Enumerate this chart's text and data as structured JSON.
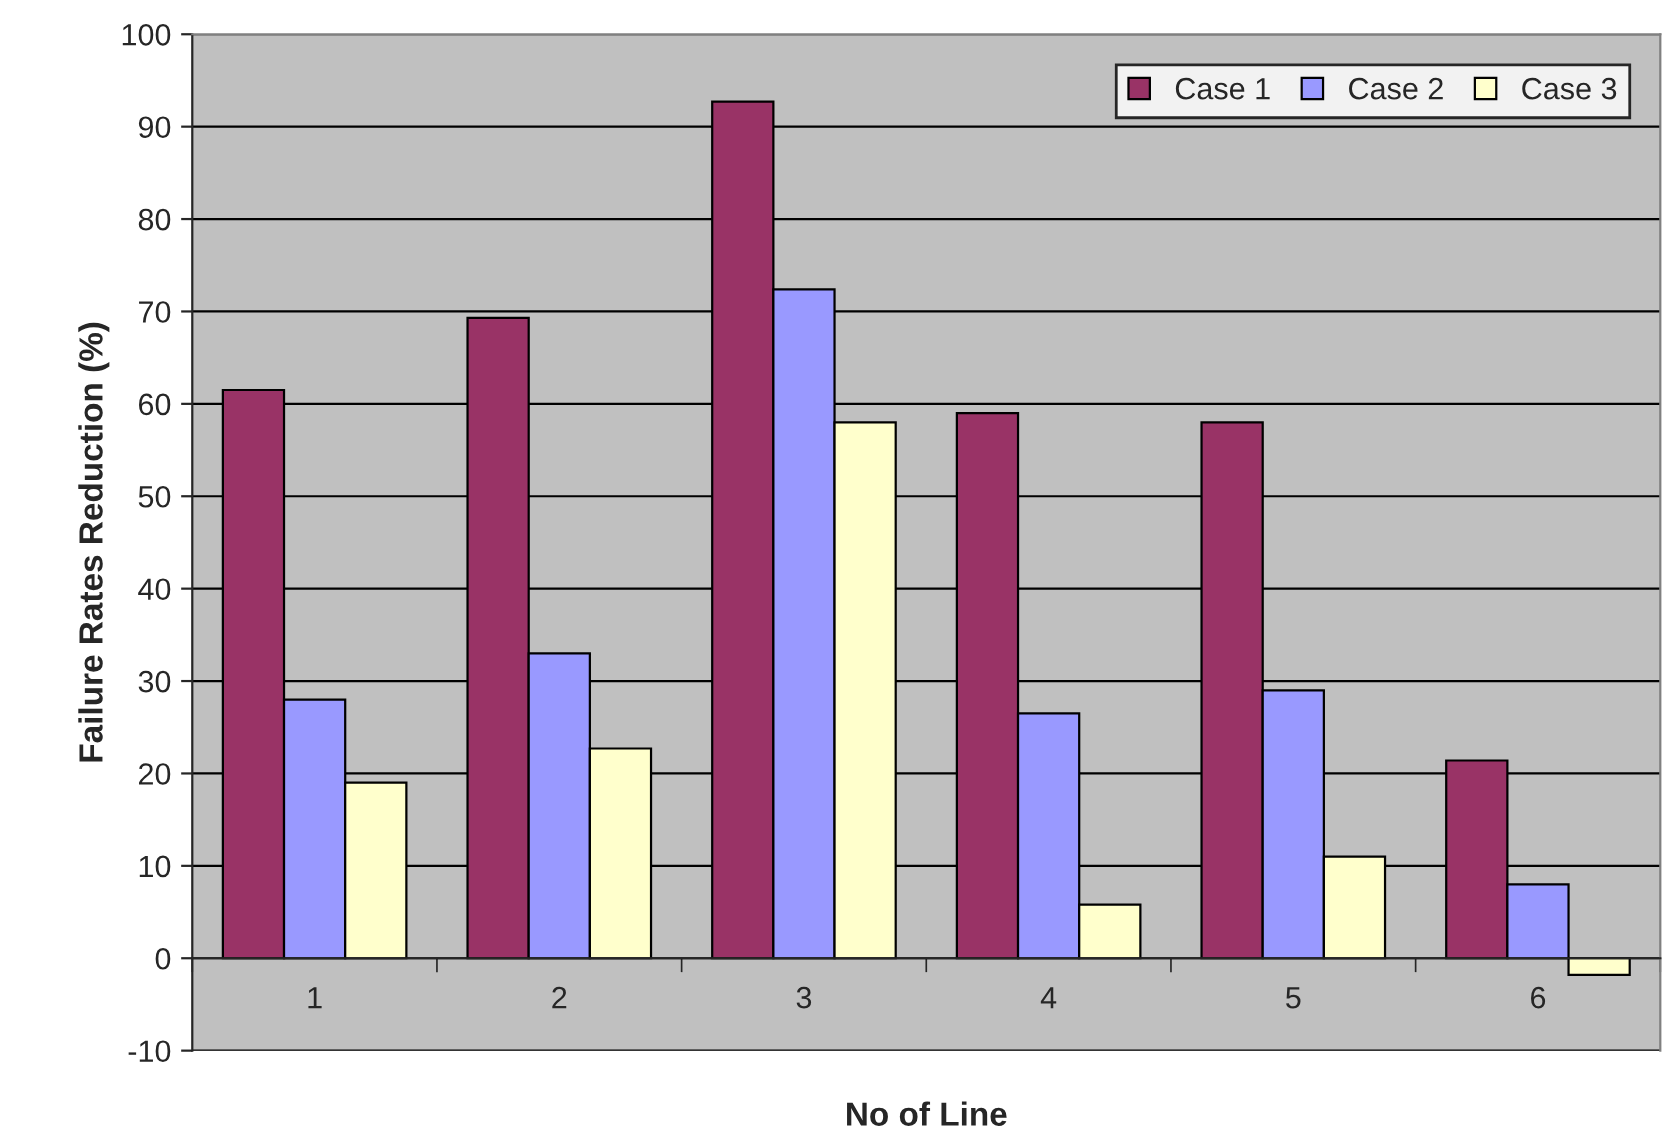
{
  "chart_data": {
    "type": "bar",
    "xlabel": "No of Line",
    "ylabel": "Failure Rates Reduction (%)",
    "categories": [
      "1",
      "2",
      "3",
      "4",
      "5",
      "6"
    ],
    "series": [
      {
        "name": "Case 1",
        "color": "#993366",
        "values": [
          61.5,
          69.3,
          92.7,
          59,
          58,
          21.4
        ]
      },
      {
        "name": "Case 2",
        "color": "#9999ff",
        "values": [
          28,
          33,
          72.4,
          26.5,
          29,
          8
        ]
      },
      {
        "name": "Case 3",
        "color": "#ffffcc",
        "values": [
          19,
          22.7,
          58,
          5.8,
          11,
          -1.8
        ]
      }
    ],
    "ylim": [
      -10,
      100
    ],
    "yticks": [
      -10,
      0,
      10,
      20,
      30,
      40,
      50,
      60,
      70,
      80,
      90,
      100
    ],
    "grid": "y",
    "legend": "top right"
  }
}
